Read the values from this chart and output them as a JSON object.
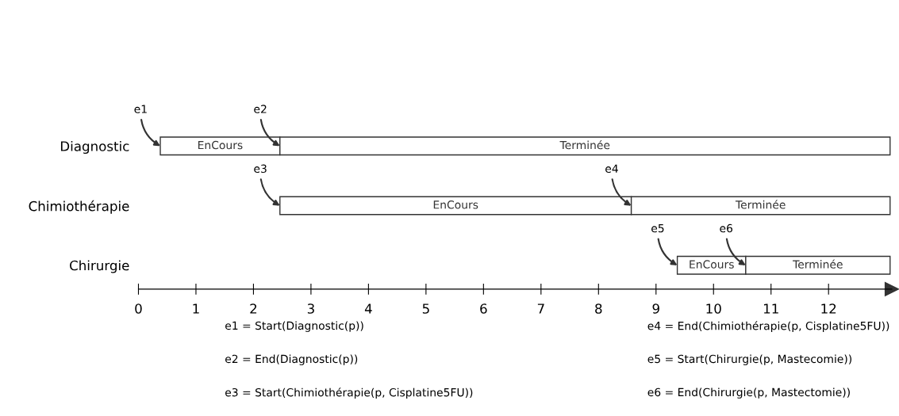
{
  "chart_data": {
    "type": "bar",
    "orientation": "horizontal",
    "categories": [
      "Diagnostic",
      "Chimiothérapie",
      "Chirurgie"
    ],
    "series": [
      {
        "color": "#ffffff",
        "base": [
          0.38,
          2.46,
          9.37
        ],
        "values": [
          2.08,
          6.11,
          1.19
        ],
        "value_labels": [
          "EnCours",
          "EnCours",
          "EnCours"
        ]
      },
      {
        "color": "#ffffff",
        "base": [
          2.46,
          8.57,
          10.56
        ],
        "values": [
          10.61,
          4.5,
          2.51
        ],
        "value_labels": [
          "Terminée",
          "Terminée",
          "Terminée"
        ]
      }
    ],
    "xlim": [
      0,
      13.1
    ],
    "xticks": [
      0,
      1,
      2,
      3,
      4,
      5,
      6,
      7,
      8,
      9,
      10,
      11,
      12
    ],
    "grid": false,
    "annotations": [
      {
        "text": "e1",
        "x": 0.38,
        "y": "Diagnostic"
      },
      {
        "text": "e3",
        "x": 2.46,
        "y": "Chimiothérapie"
      },
      {
        "text": "e2",
        "x": 2.46,
        "y": "Diagnostic"
      },
      {
        "text": "e4",
        "x": 8.57,
        "y": "Chimiothérapie"
      },
      {
        "text": "e5",
        "x": 9.37,
        "y": "Chirurgie"
      },
      {
        "text": "e6",
        "x": 10.56,
        "y": "Chirurgie"
      },
      "e1 = Start(Diagnostic(p))",
      "e2 = End(Diagnostic(p))",
      "e3 = Start(Chimiothérapie(p, Cisplatine5FU))",
      "e4 = End(Chimiothérapie(p, Cisplatine5FU))",
      "e5 = Start(Chirurgie(p, Mastecomie))",
      "e6 = End(Chirurgie(p, Mastectomie))"
    ]
  }
}
